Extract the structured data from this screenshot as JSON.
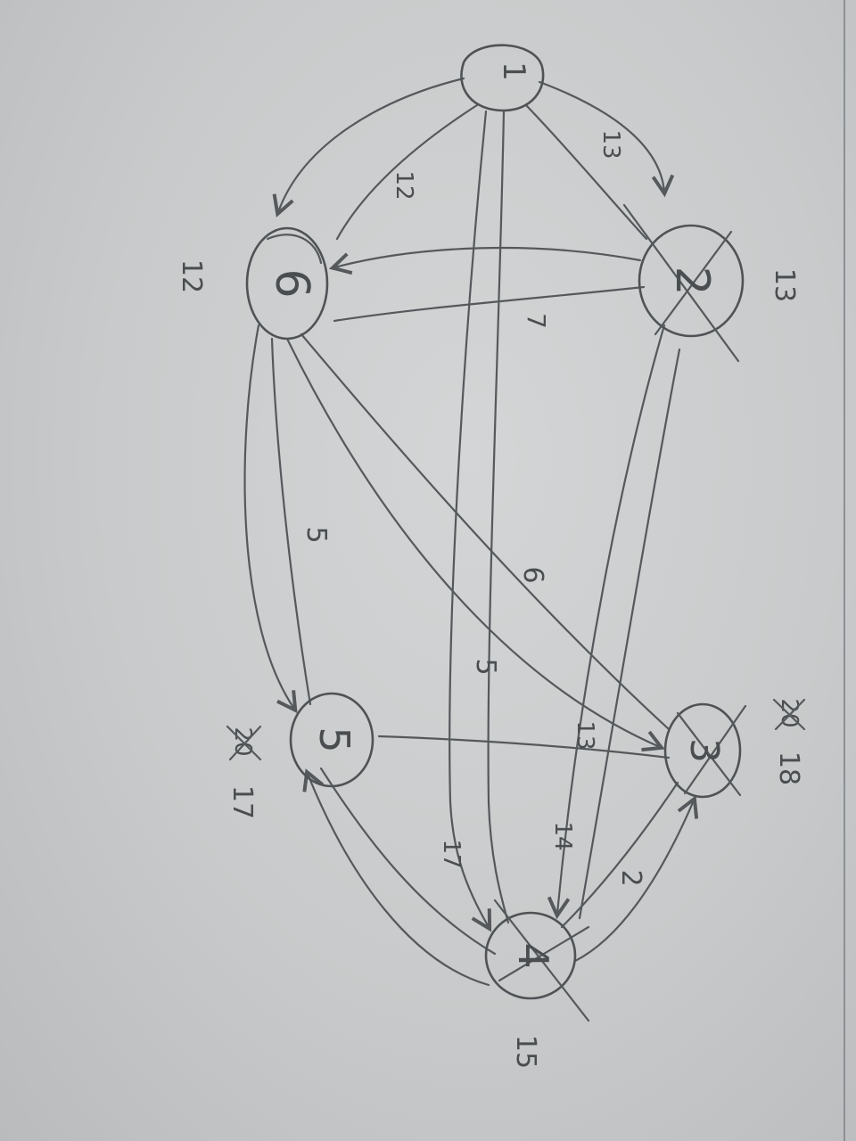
{
  "diagram": {
    "nodes": [
      {
        "id": "1",
        "label": "1",
        "note": ""
      },
      {
        "id": "6",
        "label": "6",
        "note": "12"
      },
      {
        "id": "2",
        "label": "2",
        "note": "13"
      },
      {
        "id": "5",
        "label": "5",
        "note": "17"
      },
      {
        "id": "3",
        "label": "3",
        "note": "18"
      },
      {
        "id": "4",
        "label": "4",
        "note": "15"
      }
    ],
    "edges": [
      {
        "from": "1",
        "to": "6",
        "weight": "12"
      },
      {
        "from": "1",
        "to": "2",
        "weight": "13"
      },
      {
        "from": "1",
        "to": "4",
        "weight": "17"
      },
      {
        "from": "2",
        "to": "6",
        "weight": "7"
      },
      {
        "from": "2",
        "to": "4",
        "weight": "14"
      },
      {
        "from": "6",
        "to": "5",
        "weight": "5"
      },
      {
        "from": "6",
        "to": "3",
        "weight": "6"
      },
      {
        "from": "6",
        "to": "4",
        "weight": "5"
      },
      {
        "from": "5",
        "to": "3",
        "weight": "13"
      },
      {
        "from": "4",
        "to": "3",
        "weight": "2"
      },
      {
        "from": "4",
        "to": "5",
        "weight": ""
      }
    ]
  },
  "colors": {
    "paper": "#d0d2d3",
    "pencil": "#55595c"
  }
}
